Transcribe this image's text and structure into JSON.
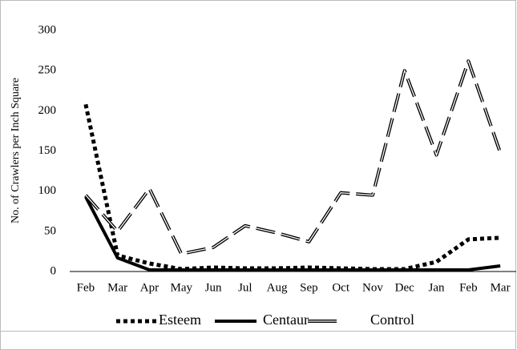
{
  "chart_data": {
    "type": "line",
    "ylabel": "No. of Crawlers per Inch Square",
    "categories": [
      "Feb",
      "Mar",
      "Apr",
      "May",
      "Jun",
      "Jul",
      "Aug",
      "Sep",
      "Oct",
      "Nov",
      "Dec",
      "Jan",
      "Feb",
      "Mar"
    ],
    "series": [
      {
        "name": "Esteem",
        "color": "#000000",
        "style": "dotted",
        "values": [
          208,
          20,
          10,
          3,
          5,
          4,
          4,
          5,
          4,
          3,
          3,
          12,
          40,
          42
        ]
      },
      {
        "name": "Centaur",
        "color": "#000000",
        "style": "solid",
        "values": [
          93,
          17,
          2,
          2,
          2,
          2,
          2,
          2,
          2,
          2,
          2,
          2,
          2,
          7
        ]
      },
      {
        "name": "Control",
        "color": "#000000",
        "style": "double-dashed",
        "values": [
          95,
          50,
          103,
          22,
          30,
          57,
          48,
          37,
          98,
          95,
          250,
          145,
          262,
          148
        ]
      }
    ],
    "ylim": [
      0,
      300
    ],
    "yticks": [
      0,
      50,
      100,
      150,
      200,
      250,
      300
    ],
    "grid": false,
    "legend": "bottom"
  }
}
